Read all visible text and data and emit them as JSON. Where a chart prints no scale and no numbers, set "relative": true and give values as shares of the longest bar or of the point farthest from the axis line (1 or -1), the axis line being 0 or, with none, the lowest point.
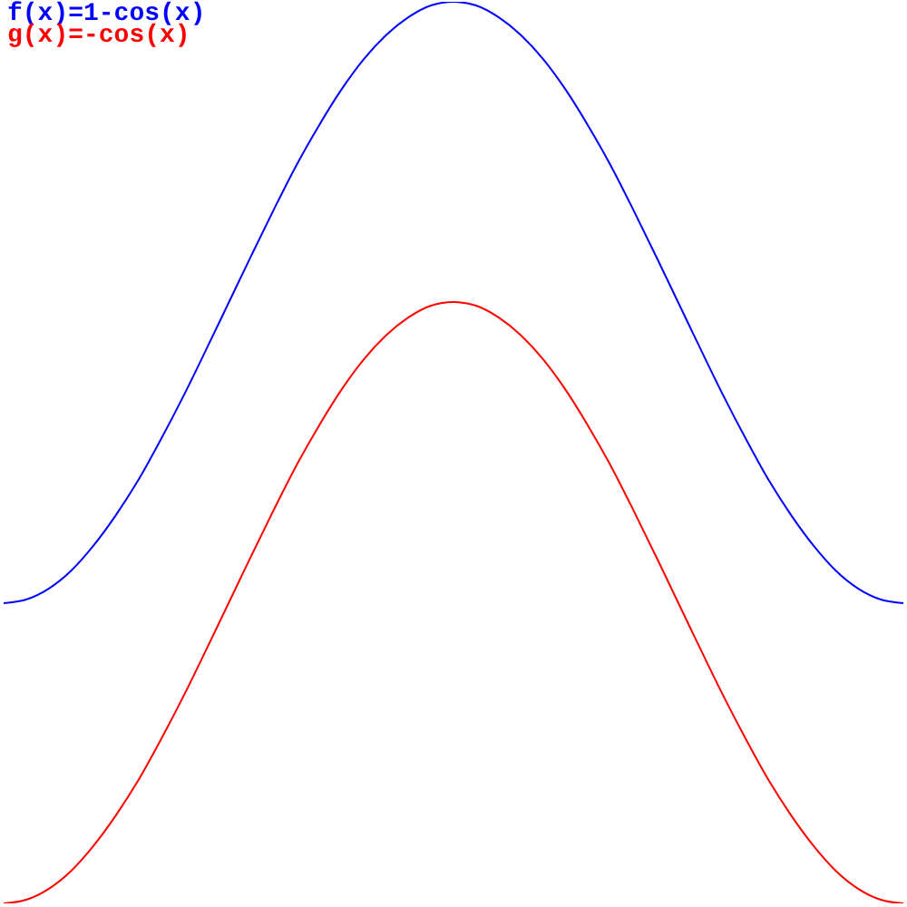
{
  "chart_data": {
    "type": "line",
    "relative": true,
    "legend": "top left",
    "categories": [
      null,
      null,
      null,
      null,
      null,
      null,
      null,
      null,
      null,
      null,
      null,
      null,
      null,
      null,
      null,
      null,
      null,
      null,
      null,
      null,
      null,
      null,
      null,
      null,
      null,
      null,
      null,
      null,
      null,
      null,
      null,
      null,
      null,
      null,
      null,
      null,
      null,
      null,
      null,
      null,
      null
    ],
    "series": [
      {
        "name": "f(x)=1-cos(x)",
        "color": "#0000ff",
        "values": [
          0.333,
          0.337,
          0.349,
          0.369,
          0.397,
          0.431,
          0.47,
          0.515,
          0.563,
          0.614,
          0.666,
          0.718,
          0.769,
          0.818,
          0.862,
          0.902,
          0.936,
          0.963,
          0.983,
          0.996,
          1.0,
          0.996,
          0.983,
          0.963,
          0.936,
          0.902,
          0.862,
          0.818,
          0.769,
          0.718,
          0.666,
          0.614,
          0.563,
          0.515,
          0.47,
          0.431,
          0.397,
          0.369,
          0.349,
          0.337,
          0.333
        ]
      },
      {
        "name": "g(x)=-cos(x)",
        "color": "#ff0000",
        "values": [
          0,
          0.004,
          0.016,
          0.036,
          0.064,
          0.098,
          0.137,
          0.182,
          0.23,
          0.281,
          0.333,
          0.385,
          0.436,
          0.485,
          0.529,
          0.569,
          0.603,
          0.63,
          0.65,
          0.663,
          0.667,
          0.663,
          0.65,
          0.63,
          0.603,
          0.569,
          0.529,
          0.485,
          0.436,
          0.385,
          0.333,
          0.281,
          0.23,
          0.182,
          0.137,
          0.098,
          0.064,
          0.036,
          0.016,
          0.004,
          0
        ]
      }
    ]
  }
}
